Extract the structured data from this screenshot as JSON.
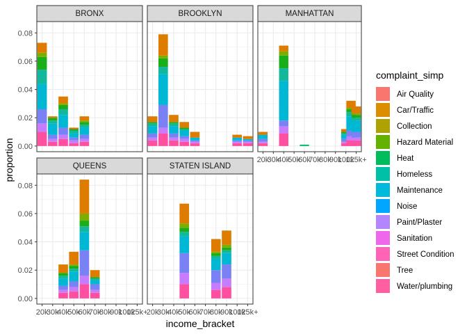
{
  "chart_data": {
    "type": "bar",
    "stacked": true,
    "faceted": true,
    "xlabel": "income_bracket",
    "ylabel": "proportion",
    "ylim": [
      -0.004,
      0.088
    ],
    "yticks": [
      "0.00",
      "0.02",
      "0.04",
      "0.06",
      "0.08"
    ],
    "ytick_values": [
      0,
      0.02,
      0.04,
      0.06,
      0.08
    ],
    "categories": [
      "20k",
      "30k",
      "40k",
      "50k",
      "60k",
      "70k",
      "80k",
      "90k",
      "100k",
      "125k+"
    ],
    "xtick_labels": [
      "20k",
      "30k",
      "40k",
      "50k",
      "60k",
      "70k",
      "80k",
      "90k",
      "100k",
      "125k+"
    ],
    "legend": {
      "title": "complaint_simp",
      "position": "right",
      "items": [
        {
          "name": "Air Quality",
          "color": "#F8766D"
        },
        {
          "name": "Car/Traffic",
          "color": "#DB8E00"
        },
        {
          "name": "Collection",
          "color": "#AEA200"
        },
        {
          "name": "Hazard Material",
          "color": "#64B200"
        },
        {
          "name": "Heat",
          "color": "#00BD5C"
        },
        {
          "name": "Homeless",
          "color": "#00C1A7"
        },
        {
          "name": "Maintenance",
          "color": "#00BADE"
        },
        {
          "name": "Noise",
          "color": "#00A6FF"
        },
        {
          "name": "Paint/Plaster",
          "color": "#B385FF"
        },
        {
          "name": "Sanitation",
          "color": "#EF67EB"
        },
        {
          "name": "Street Condition",
          "color": "#FF63B6"
        },
        {
          "name": "Tree",
          "color": "#F8766D"
        },
        {
          "name": "Water/plumbing",
          "color": "#FF5FA0"
        }
      ]
    },
    "series_colors": {
      "Air Quality": "#F8766D",
      "Car/Traffic": "#DE7C00",
      "Collection": "#B79F00",
      "Hazard Material": "#7CAE00",
      "Heat": "#1AAF1A",
      "Homeless": "#00BE67",
      "Maintenance": "#13B89C",
      "Noise": "#00B8D4",
      "Paint/Plaster": "#1CA3F5",
      "Sanitation": "#7A81F5",
      "Street Condition": "#C77CFF",
      "Tree": "#EE42D9",
      "Water/plumbing": "#FF4FA0"
    },
    "panels": [
      {
        "name": "BRONX",
        "bars": [
          {
            "x": "20k",
            "segments": {
              "Water/plumbing": 0.01,
              "Street Condition": 0.006,
              "Sanitation": 0.01,
              "Noise": 0.018,
              "Maintenance": 0.01,
              "Heat": 0.009,
              "Hazard Material": 0.003,
              "Car/Traffic": 0.007
            }
          },
          {
            "x": "30k",
            "segments": {
              "Water/plumbing": 0.003,
              "Street Condition": 0.002,
              "Sanitation": 0.003,
              "Noise": 0.008,
              "Maintenance": 0.002,
              "Heat": 0.002,
              "Car/Traffic": 0.001
            }
          },
          {
            "x": "40k",
            "segments": {
              "Water/plumbing": 0.005,
              "Street Condition": 0.003,
              "Sanitation": 0.005,
              "Noise": 0.009,
              "Maintenance": 0.004,
              "Heat": 0.003,
              "Hazard Material": 0.001,
              "Car/Traffic": 0.005
            }
          },
          {
            "x": "50k",
            "segments": {
              "Water/plumbing": 0.002,
              "Street Condition": 0.002,
              "Sanitation": 0.002,
              "Noise": 0.003,
              "Maintenance": 0.002,
              "Heat": 0.001,
              "Car/Traffic": 0.001
            }
          },
          {
            "x": "60k",
            "segments": {
              "Water/plumbing": 0.003,
              "Street Condition": 0.002,
              "Sanitation": 0.003,
              "Noise": 0.005,
              "Maintenance": 0.002,
              "Heat": 0.002,
              "Hazard Material": 0.001,
              "Car/Traffic": 0.003
            }
          }
        ]
      },
      {
        "name": "BROOKLYN",
        "bars": [
          {
            "x": "20k",
            "segments": {
              "Water/plumbing": 0.004,
              "Street Condition": 0.002,
              "Sanitation": 0.003,
              "Noise": 0.005,
              "Maintenance": 0.002,
              "Heat": 0.001,
              "Car/Traffic": 0.004
            }
          },
          {
            "x": "30k",
            "segments": {
              "Water/plumbing": 0.009,
              "Street Condition": 0.004,
              "Sanitation": 0.016,
              "Noise": 0.022,
              "Maintenance": 0.005,
              "Heat": 0.006,
              "Hazard Material": 0.002,
              "Car/Traffic": 0.015
            }
          },
          {
            "x": "40k",
            "segments": {
              "Water/plumbing": 0.004,
              "Street Condition": 0.002,
              "Sanitation": 0.003,
              "Noise": 0.005,
              "Maintenance": 0.002,
              "Heat": 0.001,
              "Car/Traffic": 0.005
            }
          },
          {
            "x": "50k",
            "segments": {
              "Water/plumbing": 0.003,
              "Street Condition": 0.002,
              "Sanitation": 0.002,
              "Noise": 0.004,
              "Maintenance": 0.001,
              "Heat": 0.001,
              "Car/Traffic": 0.004
            }
          },
          {
            "x": "60k",
            "segments": {
              "Water/plumbing": 0.002,
              "Street Condition": 0.001,
              "Sanitation": 0.001,
              "Noise": 0.002,
              "Car/Traffic": 0.004
            }
          },
          {
            "x": "100k",
            "segments": {
              "Water/plumbing": 0.002,
              "Street Condition": 0.001,
              "Sanitation": 0.001,
              "Noise": 0.002,
              "Car/Traffic": 0.002
            }
          },
          {
            "x": "125k+",
            "segments": {
              "Water/plumbing": 0.002,
              "Street Condition": 0.001,
              "Sanitation": 0.001,
              "Noise": 0.001,
              "Car/Traffic": 0.002
            }
          }
        ]
      },
      {
        "name": "MANHATTAN",
        "bars": [
          {
            "x": "20k",
            "segments": {
              "Water/plumbing": 0.002,
              "Street Condition": 0.001,
              "Sanitation": 0.002,
              "Noise": 0.003,
              "Car/Traffic": 0.002
            }
          },
          {
            "x": "40k",
            "segments": {
              "Water/plumbing": 0.009,
              "Street Condition": 0.005,
              "Sanitation": 0.004,
              "Noise": 0.028,
              "Maintenance": 0.009,
              "Heat": 0.009,
              "Hazard Material": 0.003,
              "Car/Traffic": 0.004
            }
          },
          {
            "x": "60k",
            "segments": {
              "Homeless": 0.001
            }
          },
          {
            "x": "100k",
            "segments": {
              "Water/plumbing": 0.002,
              "Street Condition": 0.001,
              "Sanitation": 0.002,
              "Noise": 0.003,
              "Maintenance": 0.001,
              "Heat": 0.001,
              "Car/Traffic": 0.002
            }
          },
          {
            "x": "110k",
            "segments": {
              "Water/plumbing": 0.004,
              "Street Condition": 0.003,
              "Sanitation": 0.004,
              "Noise": 0.01,
              "Maintenance": 0.003,
              "Heat": 0.002,
              "Hazard Material": 0.001,
              "Car/Traffic": 0.005
            }
          },
          {
            "x": "125k+",
            "segments": {
              "Water/plumbing": 0.004,
              "Street Condition": 0.002,
              "Sanitation": 0.004,
              "Noise": 0.008,
              "Maintenance": 0.002,
              "Heat": 0.002,
              "Hazard Material": 0.001,
              "Car/Traffic": 0.005
            }
          }
        ]
      },
      {
        "name": "QUEENS",
        "bars": [
          {
            "x": "40k",
            "segments": {
              "Water/plumbing": 0.004,
              "Street Condition": 0.002,
              "Sanitation": 0.003,
              "Noise": 0.005,
              "Maintenance": 0.002,
              "Heat": 0.002,
              "Car/Traffic": 0.006
            }
          },
          {
            "x": "50k",
            "segments": {
              "Water/plumbing": 0.005,
              "Street Condition": 0.003,
              "Sanitation": 0.004,
              "Noise": 0.007,
              "Maintenance": 0.002,
              "Heat": 0.002,
              "Hazard Material": 0.001,
              "Car/Traffic": 0.009
            }
          },
          {
            "x": "60k",
            "segments": {
              "Water/plumbing": 0.01,
              "Street Condition": 0.006,
              "Sanitation": 0.018,
              "Noise": 0.013,
              "Maintenance": 0.004,
              "Heat": 0.004,
              "Hazard Material": 0.005,
              "Car/Traffic": 0.024
            }
          },
          {
            "x": "70k",
            "segments": {
              "Water/plumbing": 0.004,
              "Street Condition": 0.002,
              "Sanitation": 0.004,
              "Noise": 0.003,
              "Maintenance": 0.001,
              "Heat": 0.001,
              "Car/Traffic": 0.005
            }
          }
        ]
      },
      {
        "name": "STATEN ISLAND",
        "bars": [
          {
            "x": "50k",
            "segments": {
              "Water/plumbing": 0.01,
              "Street Condition": 0.008,
              "Sanitation": 0.014,
              "Noise": 0.012,
              "Maintenance": 0.003,
              "Heat": 0.003,
              "Hazard Material": 0.003,
              "Car/Traffic": 0.014
            }
          },
          {
            "x": "80k",
            "segments": {
              "Water/plumbing": 0.006,
              "Street Condition": 0.005,
              "Sanitation": 0.009,
              "Noise": 0.008,
              "Maintenance": 0.002,
              "Heat": 0.002,
              "Hazard Material": 0.001,
              "Car/Traffic": 0.009
            }
          },
          {
            "x": "90k",
            "segments": {
              "Water/plumbing": 0.008,
              "Street Condition": 0.006,
              "Sanitation": 0.01,
              "Noise": 0.008,
              "Maintenance": 0.002,
              "Heat": 0.002,
              "Hazard Material": 0.002,
              "Car/Traffic": 0.01
            }
          }
        ]
      }
    ]
  }
}
